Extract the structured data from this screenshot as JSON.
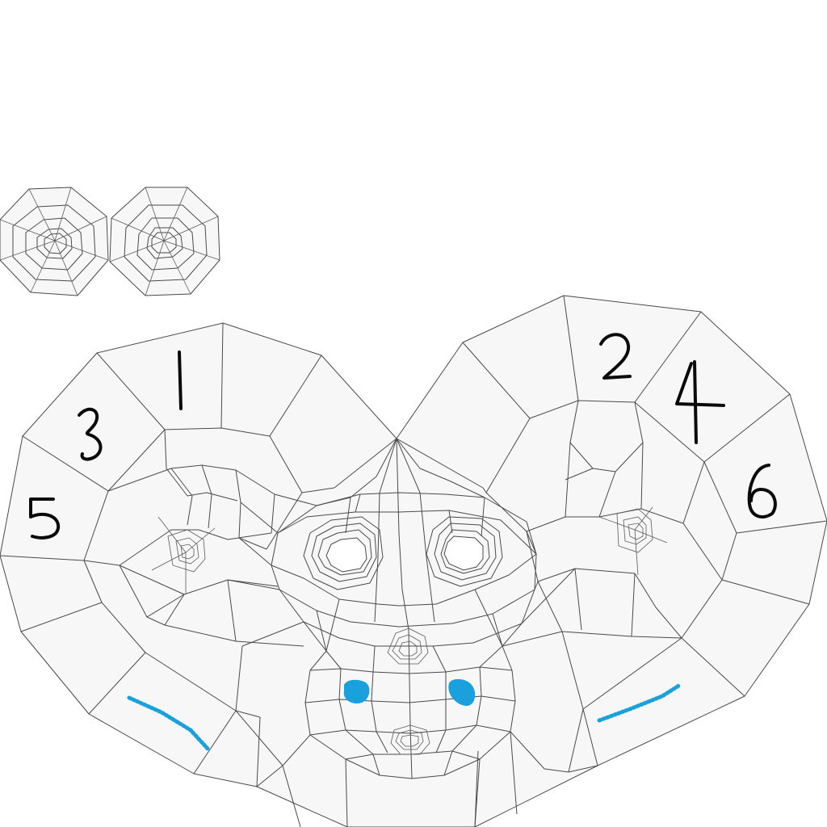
{
  "uv_layout": {
    "background": "#ffffff",
    "island_fill": "#f7f7f7",
    "wire_color": "#4a4a4a",
    "paint_color": "#1aa0dc",
    "marker_color": "#0a0a0a",
    "islands": [
      "eye-cap-left",
      "eye-cap-right",
      "face-shell"
    ],
    "region_numbers": [
      "1",
      "2",
      "3",
      "4",
      "5",
      "6"
    ]
  }
}
